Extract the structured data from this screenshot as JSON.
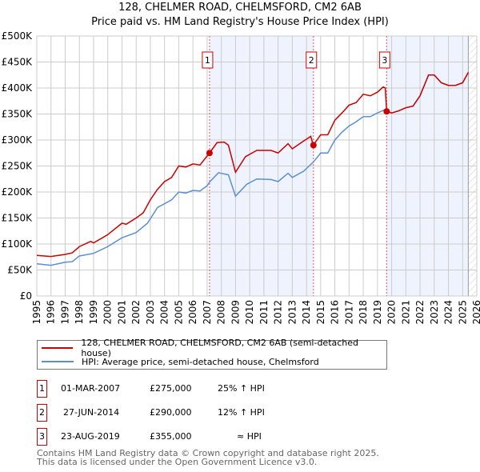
{
  "chart_data": {
    "type": "line",
    "title": "128, CHELMER ROAD, CHELMSFORD, CM2 6AB",
    "subtitle": "Price paid vs. HM Land Registry's House Price Index (HPI)",
    "xlim": [
      1995,
      2026
    ],
    "ylim": [
      0,
      500000
    ],
    "x_ticks": [
      "1995",
      "1996",
      "1997",
      "1998",
      "1999",
      "2000",
      "2001",
      "2002",
      "2003",
      "2004",
      "2005",
      "2006",
      "2007",
      "2008",
      "2009",
      "2010",
      "2011",
      "2012",
      "2013",
      "2014",
      "2015",
      "2016",
      "2017",
      "2018",
      "2019",
      "2020",
      "2021",
      "2022",
      "2023",
      "2024",
      "2025",
      "2026"
    ],
    "y_ticks": [
      {
        "v": 0,
        "label": "£0"
      },
      {
        "v": 50000,
        "label": "£50K"
      },
      {
        "v": 100000,
        "label": "£100K"
      },
      {
        "v": 150000,
        "label": "£150K"
      },
      {
        "v": 200000,
        "label": "£200K"
      },
      {
        "v": 250000,
        "label": "£250K"
      },
      {
        "v": 300000,
        "label": "£300K"
      },
      {
        "v": 350000,
        "label": "£350K"
      },
      {
        "v": 400000,
        "label": "£400K"
      },
      {
        "v": 450000,
        "label": "£450K"
      },
      {
        "v": 500000,
        "label": "£500K"
      }
    ],
    "grid": true,
    "shaded_ranges": [
      [
        2007.17,
        2014.49
      ],
      [
        2019.65,
        2025.4
      ]
    ],
    "hatched_range": [
      2025.4,
      2026
    ],
    "series": [
      {
        "name": "128, CHELMER ROAD, CHELMSFORD, CM2 6AB (semi-detached house)",
        "color": "#cc0000",
        "x": [
          1995,
          1996,
          1997,
          1997.5,
          1998,
          1998.8,
          1999,
          2000,
          2001,
          2001.3,
          2002,
          2002.5,
          2003,
          2003.5,
          2004,
          2004.5,
          2005,
          2005.5,
          2006,
          2006.5,
          2007.17,
          2007.7,
          2008.2,
          2008.5,
          2009,
          2009.7,
          2010.5,
          2011.5,
          2012,
          2012.7,
          2013,
          2013.8,
          2014.3,
          2014.48,
          2015,
          2015.5,
          2016,
          2016.5,
          2017,
          2017.5,
          2018,
          2018.5,
          2019,
          2019.4,
          2019.55,
          2019.65,
          2020,
          2020.5,
          2021,
          2021.5,
          2022,
          2022.6,
          2023,
          2023.5,
          2024,
          2024.5,
          2025,
          2025.4
        ],
        "y": [
          78000,
          76000,
          80000,
          83000,
          95000,
          105000,
          102000,
          118000,
          140000,
          138000,
          150000,
          160000,
          185000,
          205000,
          220000,
          228000,
          250000,
          248000,
          254000,
          252000,
          275000,
          295000,
          296000,
          290000,
          238000,
          268000,
          280000,
          280000,
          275000,
          293000,
          283000,
          298000,
          307000,
          290000,
          310000,
          310000,
          338000,
          352000,
          367000,
          372000,
          388000,
          385000,
          392000,
          402000,
          400000,
          355000,
          352000,
          356000,
          362000,
          365000,
          385000,
          425000,
          425000,
          410000,
          405000,
          405000,
          410000,
          430000
        ]
      },
      {
        "name": "HPI: Average price, semi-detached house, Chelmsford",
        "color": "#5b8fd4",
        "x": [
          1995,
          1996,
          1997,
          1997.5,
          1998,
          1999,
          2000,
          2001,
          2002,
          2002.8,
          2003.5,
          2004.5,
          2005,
          2005.5,
          2006,
          2006.5,
          2007,
          2007.2,
          2007.8,
          2008.5,
          2009,
          2009.8,
          2010.5,
          2011.5,
          2012,
          2012.7,
          2013,
          2013.8,
          2014.5,
          2015,
          2015.5,
          2016,
          2016.5,
          2017,
          2017.5,
          2018,
          2018.5,
          2019,
          2019.5,
          2020,
          2020.5,
          2021,
          2021.5,
          2022,
          2022.6,
          2023,
          2023.5,
          2024,
          2024.5,
          2025,
          2025.4
        ],
        "y": [
          62000,
          59000,
          65000,
          66000,
          77000,
          82000,
          95000,
          112000,
          122000,
          140000,
          170000,
          185000,
          200000,
          198000,
          203000,
          202000,
          212000,
          220000,
          237000,
          233000,
          192000,
          215000,
          225000,
          224000,
          220000,
          236000,
          228000,
          240000,
          258000,
          275000,
          275000,
          300000,
          315000,
          327000,
          335000,
          345000,
          345000,
          352000,
          358000,
          352000,
          356000,
          362000,
          365000,
          385000,
          425000,
          425000,
          410000,
          405000,
          405000,
          410000,
          430000
        ]
      }
    ],
    "sales": [
      {
        "label": "1",
        "x": 2007.17,
        "y": 275000
      },
      {
        "label": "2",
        "x": 2014.49,
        "y": 290000
      },
      {
        "label": "3",
        "x": 2019.65,
        "y": 355000
      }
    ],
    "legend_position": "below"
  },
  "transactions": [
    {
      "num": "1",
      "date": "01-MAR-2007",
      "price": "£275,000",
      "hpi": "25% ↑ HPI"
    },
    {
      "num": "2",
      "date": "27-JUN-2014",
      "price": "£290,000",
      "hpi": "12% ↑ HPI"
    },
    {
      "num": "3",
      "date": "23-AUG-2019",
      "price": "£355,000",
      "hpi": "≈ HPI"
    }
  ],
  "footer": [
    "Contains HM Land Registry data © Crown copyright and database right 2025.",
    "This data is licensed under the Open Government Licence v3.0."
  ]
}
